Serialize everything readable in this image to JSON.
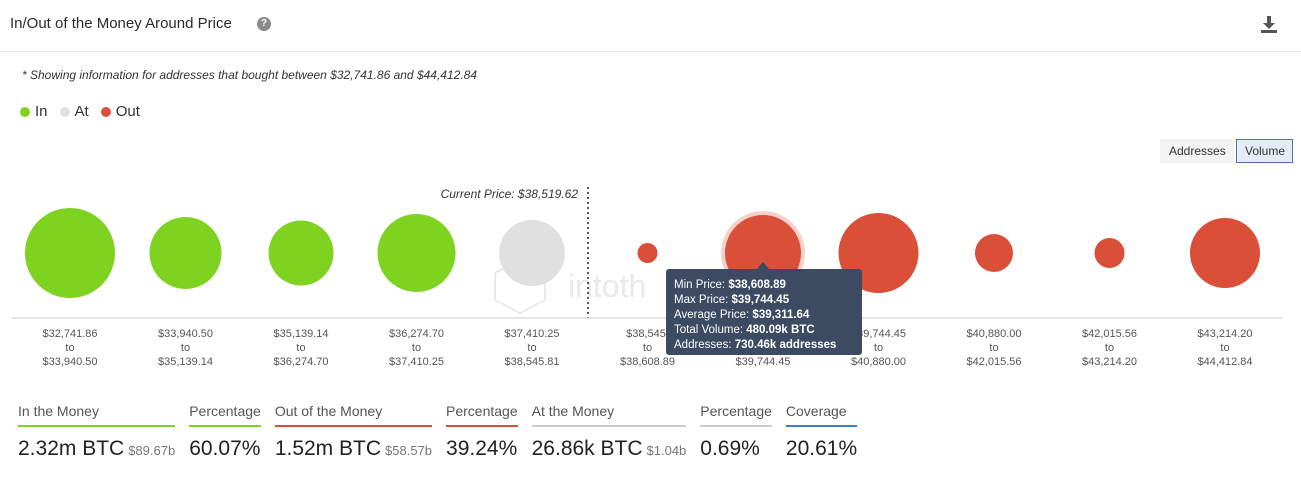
{
  "header": {
    "title": "In/Out of the Money Around Price",
    "help_icon": "question-circle-icon",
    "download_icon": "download-icon"
  },
  "note": "* Showing information for addresses that bought between $32,741.86 and $44,412.84",
  "legend": [
    {
      "label": "In",
      "color": "#7ed321"
    },
    {
      "label": "At",
      "color": "#e0e0e0"
    },
    {
      "label": "Out",
      "color": "#d94f38"
    }
  ],
  "toggles": {
    "addresses": "Addresses",
    "volume": "Volume",
    "active": "Volume"
  },
  "current_price_label": "Current Price: $38,519.62",
  "chart_data": {
    "type": "bubble",
    "size_metric": "Volume",
    "current_price": 38519.62,
    "categories": [
      {
        "from": "$32,741.86",
        "to": "$33,940.50",
        "status": "In",
        "relative_size": 90
      },
      {
        "from": "$33,940.50",
        "to": "$35,139.14",
        "status": "In",
        "relative_size": 72
      },
      {
        "from": "$35,139.14",
        "to": "$36,274.70",
        "status": "In",
        "relative_size": 65
      },
      {
        "from": "$36,274.70",
        "to": "$37,410.25",
        "status": "In",
        "relative_size": 78
      },
      {
        "from": "$37,410.25",
        "to": "$38,545.81",
        "status": "At",
        "relative_size": 66
      },
      {
        "from": "$38,545.81",
        "to": "$38,608.89",
        "status": "Out",
        "relative_size": 20
      },
      {
        "from": "$38,608.89",
        "to": "$39,744.45",
        "status": "Out",
        "relative_size": 76
      },
      {
        "from": "$39,744.45",
        "to": "$40,880.00",
        "status": "Out",
        "relative_size": 80
      },
      {
        "from": "$40,880.00",
        "to": "$42,015.56",
        "status": "Out",
        "relative_size": 38
      },
      {
        "from": "$42,015.56",
        "to": "$43,214.20",
        "status": "Out",
        "relative_size": 30
      },
      {
        "from": "$43,214.20",
        "to": "$44,412.84",
        "status": "Out",
        "relative_size": 70
      }
    ],
    "tick_labels": [
      [
        "$32,741.86",
        "to",
        "$33,940.50"
      ],
      [
        "$33,940.50",
        "to",
        "$35,139.14"
      ],
      [
        "$35,139.14",
        "to",
        "$36,274.70"
      ],
      [
        "$36,274.70",
        "to",
        "$37,410.25"
      ],
      [
        "$37,410.25",
        "to",
        "$38,545.81"
      ],
      [
        "$38,545.",
        "to",
        "$38,608.89"
      ],
      [
        "",
        "",
        "$39,744.45"
      ],
      [
        "$39,744.45",
        "to",
        "$40,880.00"
      ],
      [
        "$40,880.00",
        "to",
        "$42,015.56"
      ],
      [
        "$42,015.56",
        "to",
        "$43,214.20"
      ],
      [
        "$43,214.20",
        "to",
        "$44,412.84"
      ]
    ],
    "highlighted_index": 6,
    "colors": {
      "In": "#7ed321",
      "At": "#e0e0e0",
      "Out": "#d94f38"
    }
  },
  "tooltip": {
    "min_price_label": "Min Price:",
    "min_price": "$38,608.89",
    "max_price_label": "Max Price:",
    "max_price": "$39,744.45",
    "avg_price_label": "Average Price:",
    "avg_price": "$39,311.64",
    "volume_label": "Total Volume:",
    "volume": "480.09k BTC",
    "addresses_label": "Addresses:",
    "addresses": "730.46k addresses"
  },
  "stats": [
    {
      "label": "In the Money",
      "value": "2.32m BTC",
      "sub": "$89.67b",
      "color": "#7ed321"
    },
    {
      "label": "Percentage",
      "value": "60.07%",
      "sub": "",
      "color": "#7ed321"
    },
    {
      "label": "Out of the Money",
      "value": "1.52m BTC",
      "sub": "$58.57b",
      "color": "#d94f38"
    },
    {
      "label": "Percentage",
      "value": "39.24%",
      "sub": "",
      "color": "#d94f38"
    },
    {
      "label": "At the Money",
      "value": "26.86k BTC",
      "sub": "$1.04b",
      "color": "#cccccc"
    },
    {
      "label": "Percentage",
      "value": "0.69%",
      "sub": "",
      "color": "#cccccc"
    },
    {
      "label": "Coverage",
      "value": "20.61%",
      "sub": "",
      "color": "#3a7bd5"
    }
  ]
}
